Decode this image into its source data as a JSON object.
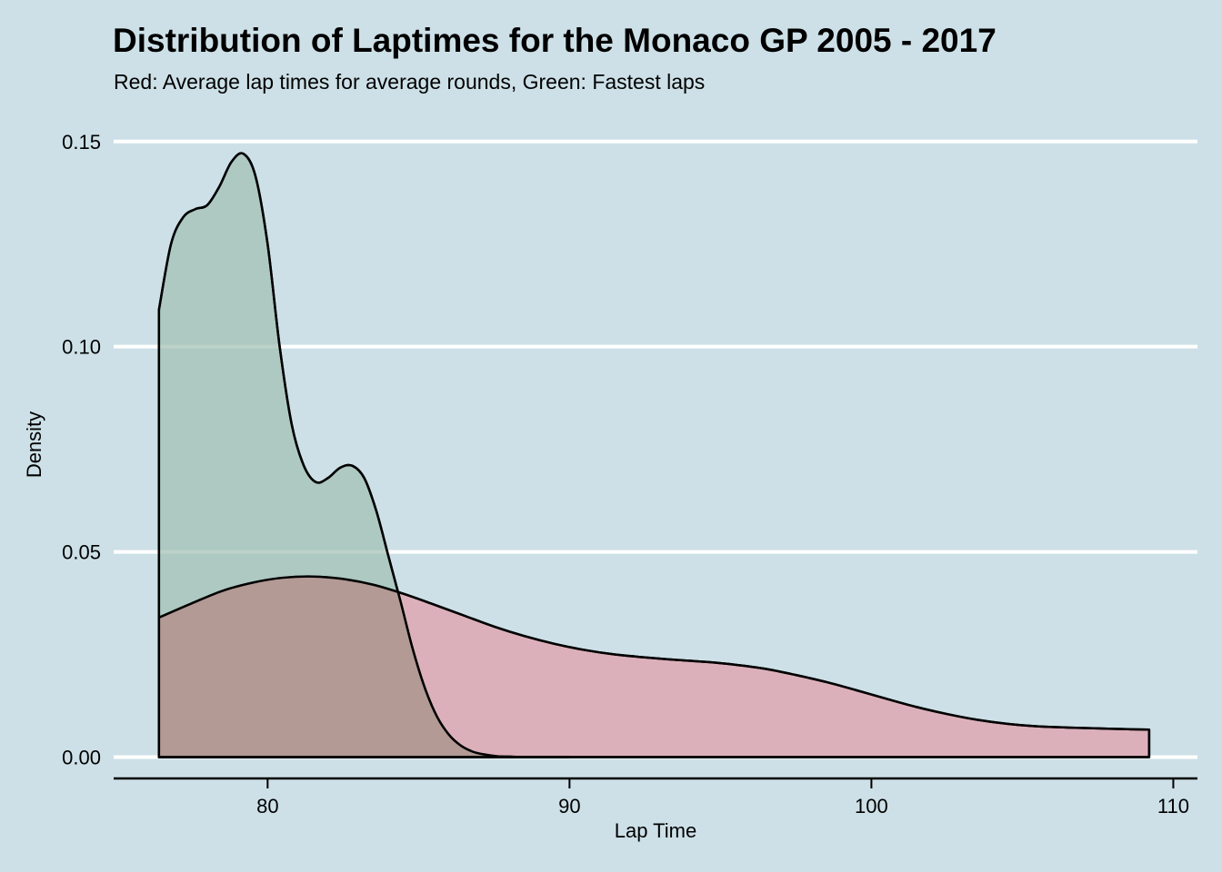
{
  "colors": {
    "background": "#cde0e7",
    "gridline": "#ffffff",
    "fastest_fill": "#9fbfb1",
    "average_fill": "#dcb0bb",
    "overlap_fill": "#b39a94",
    "outline": "#000000"
  },
  "header": {
    "title": "Distribution of Laptimes for the Monaco GP 2005 - 2017",
    "subtitle": "Red: Average lap times for average rounds, Green: Fastest laps"
  },
  "chart_data": {
    "type": "area",
    "title": "Distribution of Laptimes for the Monaco GP 2005 - 2017",
    "subtitle": "Red: Average lap times for average rounds, Green: Fastest laps",
    "xlabel": "Lap Time",
    "ylabel": "Density",
    "xlim": [
      74.9,
      110.8
    ],
    "ylim": [
      -0.0052,
      0.1588
    ],
    "xticks": [
      80,
      90,
      100,
      110
    ],
    "xtick_labels": [
      "80",
      "90",
      "100",
      "110"
    ],
    "yticks": [
      0.0,
      0.05,
      0.1,
      0.15
    ],
    "ytick_labels": [
      "0.00",
      "0.05",
      "0.10",
      "0.15"
    ],
    "grid": "horizontal",
    "legend": "none",
    "series": [
      {
        "color": "#dcb0bb",
        "x": [
          76.4,
          77.5,
          78.5,
          79.5,
          80.5,
          81.5,
          82.5,
          83.5,
          84.5,
          85.5,
          86.5,
          87.5,
          88.5,
          89.5,
          90.5,
          91.5,
          92.5,
          93.5,
          94.5,
          95.5,
          96.5,
          97.5,
          98.5,
          99.5,
          100.5,
          101.5,
          102.5,
          103.5,
          104.5,
          105.5,
          106.5,
          107.5,
          108.5,
          109.2
        ],
        "values": [
          0.034,
          0.0375,
          0.0405,
          0.0425,
          0.0437,
          0.044,
          0.0434,
          0.042,
          0.0398,
          0.0372,
          0.0345,
          0.0318,
          0.0295,
          0.0276,
          0.0261,
          0.025,
          0.0243,
          0.0237,
          0.0232,
          0.0225,
          0.0215,
          0.02,
          0.0183,
          0.0163,
          0.0142,
          0.0122,
          0.0105,
          0.0091,
          0.0081,
          0.0075,
          0.0072,
          0.007,
          0.0068,
          0.0067
        ]
      },
      {
        "color": "#9fbfb1",
        "x": [
          76.4,
          76.8,
          77.2,
          77.6,
          78.0,
          78.4,
          78.8,
          79.2,
          79.6,
          80.0,
          80.4,
          80.8,
          81.2,
          81.6,
          82.0,
          82.4,
          82.8,
          83.2,
          83.6,
          84.0,
          84.4,
          84.8,
          85.2,
          85.6,
          86.0,
          86.4,
          86.8,
          87.2,
          87.6,
          88.0,
          88.5,
          89.0,
          90.0
        ],
        "values": [
          0.109,
          0.125,
          0.1315,
          0.1335,
          0.1345,
          0.139,
          0.145,
          0.147,
          0.1415,
          0.125,
          0.1,
          0.081,
          0.071,
          0.067,
          0.068,
          0.0705,
          0.071,
          0.068,
          0.06,
          0.049,
          0.038,
          0.0265,
          0.017,
          0.01,
          0.0055,
          0.0028,
          0.0013,
          0.0006,
          0.0002,
          0.0001,
          0.0,
          0.0,
          0.0
        ]
      }
    ]
  }
}
